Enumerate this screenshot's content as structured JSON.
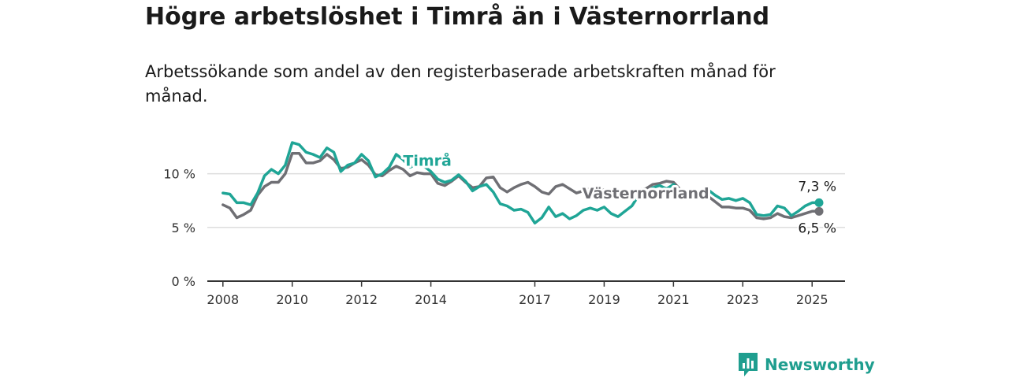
{
  "title": "Högre arbetslöshet i Timrå än i Västernorrland",
  "subtitle": "Arbetssökande som andel av den registerbaserade arbetskraften månad för månad.",
  "brand": "Newsworthy",
  "colors": {
    "timra": "#1fa596",
    "vasternorrland": "#6f6f74",
    "axis": "#333333",
    "grid": "#dddddd"
  },
  "chart_data": {
    "type": "line",
    "ylim": [
      0,
      14
    ],
    "yticks": [
      0,
      5,
      10
    ],
    "ytick_labels": [
      "0 %",
      "5 %",
      "10 %"
    ],
    "xlim": [
      2007.55,
      2025.95
    ],
    "xticks": [
      2008,
      2010,
      2012,
      2014,
      2017,
      2019,
      2021,
      2023,
      2025
    ],
    "xtick_labels": [
      "2008",
      "2010",
      "2012",
      "2014",
      "2017",
      "2019",
      "2021",
      "2023",
      "2025"
    ],
    "series": [
      {
        "name": "Timrå",
        "key": "timra",
        "end_label": "7,3 %",
        "points": [
          [
            2008.0,
            8.2
          ],
          [
            2008.2,
            8.1
          ],
          [
            2008.4,
            7.3
          ],
          [
            2008.6,
            7.3
          ],
          [
            2008.8,
            7.1
          ],
          [
            2009.0,
            8.2
          ],
          [
            2009.2,
            9.8
          ],
          [
            2009.4,
            10.4
          ],
          [
            2009.6,
            10.0
          ],
          [
            2009.8,
            10.8
          ],
          [
            2010.0,
            12.9
          ],
          [
            2010.2,
            12.7
          ],
          [
            2010.4,
            12.0
          ],
          [
            2010.6,
            11.8
          ],
          [
            2010.8,
            11.5
          ],
          [
            2011.0,
            12.4
          ],
          [
            2011.2,
            12.0
          ],
          [
            2011.4,
            10.2
          ],
          [
            2011.6,
            10.8
          ],
          [
            2011.8,
            11.0
          ],
          [
            2012.0,
            11.8
          ],
          [
            2012.2,
            11.2
          ],
          [
            2012.4,
            9.7
          ],
          [
            2012.6,
            10.0
          ],
          [
            2012.8,
            10.6
          ],
          [
            2013.0,
            11.8
          ],
          [
            2013.2,
            11.3
          ],
          [
            2013.4,
            10.6
          ],
          [
            2013.6,
            10.9
          ],
          [
            2013.8,
            10.7
          ],
          [
            2014.0,
            10.2
          ],
          [
            2014.2,
            9.5
          ],
          [
            2014.4,
            9.2
          ],
          [
            2014.6,
            9.4
          ],
          [
            2014.8,
            9.9
          ],
          [
            2015.0,
            9.3
          ],
          [
            2015.2,
            8.4
          ],
          [
            2015.4,
            8.8
          ],
          [
            2015.6,
            9.0
          ],
          [
            2015.8,
            8.3
          ],
          [
            2016.0,
            7.2
          ],
          [
            2016.2,
            7.0
          ],
          [
            2016.4,
            6.6
          ],
          [
            2016.6,
            6.7
          ],
          [
            2016.8,
            6.4
          ],
          [
            2017.0,
            5.4
          ],
          [
            2017.2,
            5.9
          ],
          [
            2017.4,
            6.9
          ],
          [
            2017.6,
            6.0
          ],
          [
            2017.8,
            6.3
          ],
          [
            2018.0,
            5.8
          ],
          [
            2018.2,
            6.1
          ],
          [
            2018.4,
            6.6
          ],
          [
            2018.6,
            6.8
          ],
          [
            2018.8,
            6.6
          ],
          [
            2019.0,
            6.9
          ],
          [
            2019.2,
            6.3
          ],
          [
            2019.4,
            6.0
          ],
          [
            2019.6,
            6.5
          ],
          [
            2019.8,
            7.0
          ],
          [
            2020.0,
            8.0
          ],
          [
            2020.2,
            8.2
          ],
          [
            2020.4,
            8.7
          ],
          [
            2020.6,
            8.9
          ],
          [
            2020.8,
            8.6
          ],
          [
            2021.0,
            9.0
          ],
          [
            2021.2,
            8.3
          ],
          [
            2021.4,
            8.0
          ],
          [
            2021.6,
            7.8
          ],
          [
            2021.8,
            7.8
          ],
          [
            2022.0,
            8.5
          ],
          [
            2022.2,
            8.0
          ],
          [
            2022.4,
            7.6
          ],
          [
            2022.6,
            7.7
          ],
          [
            2022.8,
            7.5
          ],
          [
            2023.0,
            7.7
          ],
          [
            2023.2,
            7.3
          ],
          [
            2023.4,
            6.2
          ],
          [
            2023.6,
            6.1
          ],
          [
            2023.8,
            6.2
          ],
          [
            2024.0,
            7.0
          ],
          [
            2024.2,
            6.8
          ],
          [
            2024.4,
            6.1
          ],
          [
            2024.6,
            6.5
          ],
          [
            2024.8,
            7.0
          ],
          [
            2025.0,
            7.3
          ],
          [
            2025.2,
            7.3
          ]
        ]
      },
      {
        "name": "Västernorrland",
        "key": "vasternorrland",
        "end_label": "6,5 %",
        "points": [
          [
            2008.0,
            7.1
          ],
          [
            2008.2,
            6.8
          ],
          [
            2008.4,
            5.9
          ],
          [
            2008.6,
            6.2
          ],
          [
            2008.8,
            6.6
          ],
          [
            2009.0,
            8.0
          ],
          [
            2009.2,
            8.8
          ],
          [
            2009.4,
            9.2
          ],
          [
            2009.6,
            9.2
          ],
          [
            2009.8,
            10.0
          ],
          [
            2010.0,
            11.9
          ],
          [
            2010.2,
            11.9
          ],
          [
            2010.4,
            11.0
          ],
          [
            2010.6,
            11.0
          ],
          [
            2010.8,
            11.2
          ],
          [
            2011.0,
            11.8
          ],
          [
            2011.2,
            11.3
          ],
          [
            2011.4,
            10.5
          ],
          [
            2011.6,
            10.6
          ],
          [
            2011.8,
            11.0
          ],
          [
            2012.0,
            11.3
          ],
          [
            2012.2,
            10.8
          ],
          [
            2012.4,
            9.9
          ],
          [
            2012.6,
            9.8
          ],
          [
            2012.8,
            10.3
          ],
          [
            2013.0,
            10.7
          ],
          [
            2013.2,
            10.4
          ],
          [
            2013.4,
            9.8
          ],
          [
            2013.6,
            10.1
          ],
          [
            2013.8,
            10.0
          ],
          [
            2014.0,
            10.0
          ],
          [
            2014.2,
            9.1
          ],
          [
            2014.4,
            8.9
          ],
          [
            2014.6,
            9.3
          ],
          [
            2014.8,
            9.8
          ],
          [
            2015.0,
            9.2
          ],
          [
            2015.2,
            8.7
          ],
          [
            2015.4,
            8.8
          ],
          [
            2015.6,
            9.6
          ],
          [
            2015.8,
            9.7
          ],
          [
            2016.0,
            8.7
          ],
          [
            2016.2,
            8.3
          ],
          [
            2016.4,
            8.7
          ],
          [
            2016.6,
            9.0
          ],
          [
            2016.8,
            9.2
          ],
          [
            2017.0,
            8.8
          ],
          [
            2017.2,
            8.3
          ],
          [
            2017.4,
            8.1
          ],
          [
            2017.6,
            8.8
          ],
          [
            2017.8,
            9.0
          ],
          [
            2018.0,
            8.6
          ],
          [
            2018.2,
            8.2
          ],
          [
            2018.4,
            8.4
          ],
          [
            2018.6,
            8.6
          ],
          [
            2018.8,
            8.4
          ],
          [
            2019.0,
            8.5
          ],
          [
            2019.2,
            8.4
          ],
          [
            2019.4,
            8.0
          ],
          [
            2019.6,
            8.3
          ],
          [
            2019.8,
            8.4
          ],
          [
            2020.0,
            8.5
          ],
          [
            2020.2,
            8.6
          ],
          [
            2020.4,
            9.0
          ],
          [
            2020.6,
            9.1
          ],
          [
            2020.8,
            9.3
          ],
          [
            2021.0,
            9.2
          ],
          [
            2021.2,
            8.5
          ],
          [
            2021.4,
            8.0
          ],
          [
            2021.6,
            7.9
          ],
          [
            2021.8,
            7.9
          ],
          [
            2022.0,
            7.9
          ],
          [
            2022.2,
            7.4
          ],
          [
            2022.4,
            6.9
          ],
          [
            2022.6,
            6.9
          ],
          [
            2022.8,
            6.8
          ],
          [
            2023.0,
            6.8
          ],
          [
            2023.2,
            6.6
          ],
          [
            2023.4,
            5.9
          ],
          [
            2023.6,
            5.8
          ],
          [
            2023.8,
            5.9
          ],
          [
            2024.0,
            6.3
          ],
          [
            2024.2,
            6.0
          ],
          [
            2024.4,
            5.9
          ],
          [
            2024.6,
            6.1
          ],
          [
            2024.8,
            6.3
          ],
          [
            2025.0,
            6.5
          ],
          [
            2025.2,
            6.5
          ]
        ]
      }
    ]
  }
}
